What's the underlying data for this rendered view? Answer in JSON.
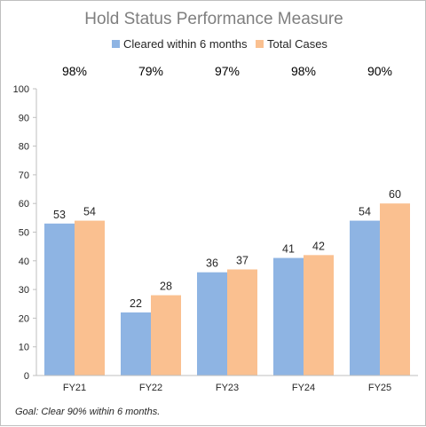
{
  "chart_data": {
    "type": "bar",
    "title": "Hold Status Performance Measure",
    "categories": [
      "FY21",
      "FY22",
      "FY23",
      "FY24",
      "FY25"
    ],
    "series": [
      {
        "name": "Cleared within 6 months",
        "values": [
          53,
          22,
          36,
          41,
          54
        ],
        "color": "#8eb4e3"
      },
      {
        "name": "Total Cases",
        "values": [
          54,
          28,
          37,
          42,
          60
        ],
        "color": "#fac090"
      }
    ],
    "percentages": [
      "98%",
      "79%",
      "97%",
      "98%",
      "90%"
    ],
    "ylim": [
      0,
      100
    ],
    "yticks": [
      0,
      10,
      20,
      30,
      40,
      50,
      60,
      70,
      80,
      90,
      100
    ],
    "xlabel": "",
    "ylabel": "",
    "grid": false,
    "legend_position": "top-center",
    "footnote": "Goal:  Clear 90% within 6 months."
  }
}
